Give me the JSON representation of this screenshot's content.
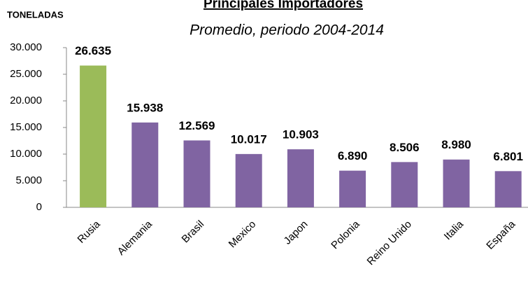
{
  "chart_data": {
    "type": "bar",
    "title": "Principales Importadores",
    "subtitle": "Promedio, periodo 2004-2014",
    "y_label": "TONELADAS",
    "categories": [
      "Rusia",
      "Alemania",
      "Brasil",
      "Mexico",
      "Japon",
      "Polonia",
      "Reino Unido",
      "Italia",
      "España"
    ],
    "values": [
      26635,
      15938,
      12569,
      10017,
      10903,
      6890,
      8506,
      8980,
      6801
    ],
    "value_labels": [
      "26.635",
      "15.938",
      "12.569",
      "10.017",
      "10.903",
      "6.890",
      "8.506",
      "8.980",
      "6.801"
    ],
    "colors": [
      "#9bbb59",
      "#8064a2",
      "#8064a2",
      "#8064a2",
      "#8064a2",
      "#8064a2",
      "#8064a2",
      "#8064a2",
      "#8064a2"
    ],
    "ylim": [
      0,
      30000
    ],
    "yticks": [
      {
        "value": 0,
        "label": "0"
      },
      {
        "value": 5000,
        "label": "5.000"
      },
      {
        "value": 10000,
        "label": "10.000"
      },
      {
        "value": 15000,
        "label": "15.000"
      },
      {
        "value": 20000,
        "label": "20.000"
      },
      {
        "value": 25000,
        "label": "25.000"
      },
      {
        "value": 30000,
        "label": "30.000"
      }
    ],
    "grid": false
  }
}
